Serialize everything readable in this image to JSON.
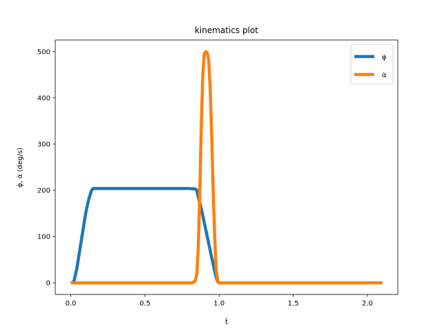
{
  "chart_data": {
    "type": "line",
    "title": "kinematics plot",
    "xlabel": "t̂",
    "ylabel": "φ̇, α̇ (deg/s)",
    "xlim": [
      -0.105,
      2.205
    ],
    "ylim": [
      -25,
      525
    ],
    "xticks": [
      0.0,
      0.5,
      1.0,
      1.5,
      2.0
    ],
    "xtick_labels": [
      "0.0",
      "0.5",
      "1.0",
      "1.5",
      "2.0"
    ],
    "yticks": [
      0,
      100,
      200,
      300,
      400,
      500
    ],
    "ytick_labels": [
      "0",
      "100",
      "200",
      "300",
      "400",
      "500"
    ],
    "grid": false,
    "legend": "top-right",
    "series": [
      {
        "name": "φ̇",
        "color": "#1f77b4",
        "x": [
          0.0,
          0.02,
          0.04,
          0.06,
          0.08,
          0.1,
          0.12,
          0.14,
          0.15,
          0.2,
          0.3,
          0.4,
          0.5,
          0.6,
          0.7,
          0.8,
          0.84,
          0.85,
          0.86,
          0.88,
          0.9,
          0.92,
          0.94,
          0.96,
          0.98,
          0.99,
          1.0,
          1.2,
          1.5,
          1.8,
          2.1
        ],
        "y": [
          0,
          2,
          30,
          70,
          110,
          150,
          180,
          200,
          204,
          204,
          204,
          204,
          204,
          204,
          204,
          204,
          203,
          200,
          185,
          160,
          130,
          100,
          70,
          40,
          12,
          3,
          0,
          0,
          0,
          0,
          0
        ]
      },
      {
        "name": "α̇",
        "color": "#ff7f0e",
        "x": [
          0.0,
          0.3,
          0.6,
          0.82,
          0.84,
          0.85,
          0.86,
          0.87,
          0.88,
          0.89,
          0.9,
          0.91,
          0.92,
          0.93,
          0.94,
          0.95,
          0.96,
          0.97,
          0.98,
          0.99,
          1.0,
          1.3,
          1.6,
          1.9,
          2.1
        ],
        "y": [
          0,
          0,
          0,
          0,
          5,
          20,
          80,
          200,
          340,
          450,
          495,
          500,
          498,
          480,
          420,
          320,
          200,
          100,
          30,
          5,
          0,
          0,
          0,
          0,
          0
        ]
      }
    ]
  }
}
